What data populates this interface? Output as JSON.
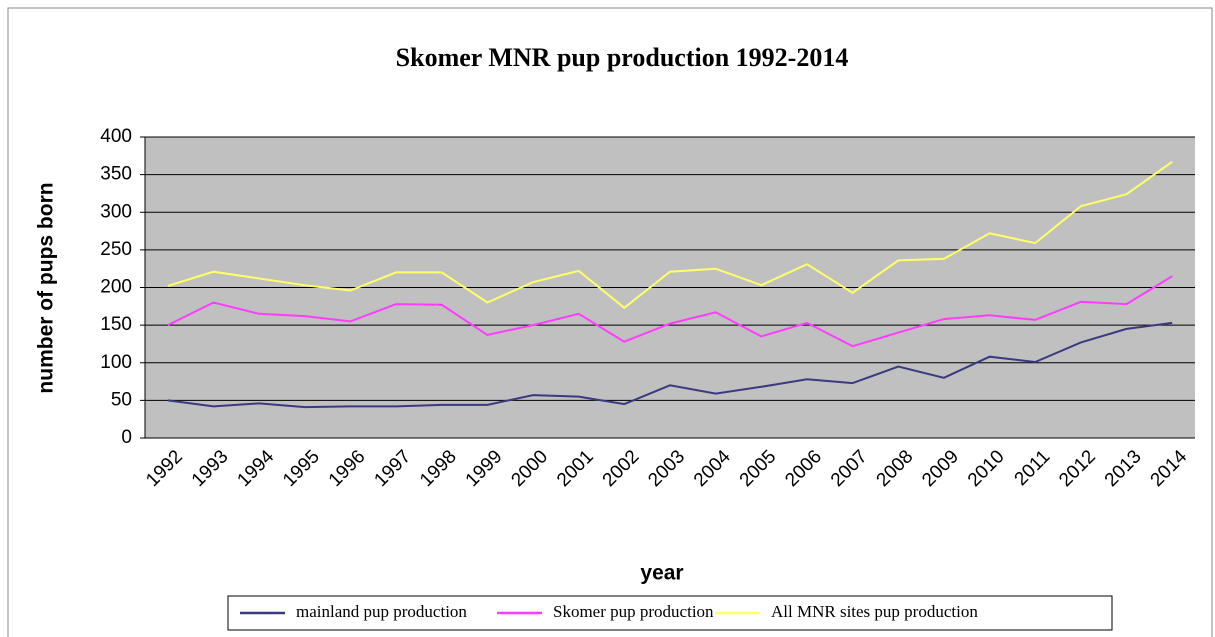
{
  "chart_data": {
    "type": "line",
    "title": "Skomer MNR pup production 1992-2014",
    "x_label": "year",
    "y_label": "number of pups born",
    "categories": [
      "1992",
      "1993",
      "1994",
      "1995",
      "1996",
      "1997",
      "1998",
      "1999",
      "2000",
      "2001",
      "2002",
      "2003",
      "2004",
      "2005",
      "2006",
      "2007",
      "2008",
      "2009",
      "2010",
      "2011",
      "2012",
      "2013",
      "2014"
    ],
    "series": [
      {
        "name": "mainland pup production",
        "color": "#3a3a80",
        "values": [
          50,
          42,
          46,
          41,
          42,
          42,
          44,
          44,
          57,
          55,
          45,
          70,
          59,
          68,
          78,
          73,
          95,
          80,
          108,
          101,
          127,
          145,
          153
        ]
      },
      {
        "name": "Skomer pup production",
        "color": "#ff3cff",
        "values": [
          150,
          180,
          165,
          162,
          155,
          178,
          177,
          137,
          150,
          165,
          128,
          152,
          167,
          135,
          153,
          122,
          140,
          158,
          163,
          157,
          181,
          178,
          215
        ]
      },
      {
        "name": "All MNR sites pup production",
        "color": "#ffff66",
        "values": [
          202,
          221,
          212,
          203,
          196,
          220,
          220,
          180,
          207,
          222,
          173,
          221,
          225,
          203,
          231,
          193,
          236,
          238,
          272,
          259,
          308,
          324,
          367
        ]
      }
    ],
    "ylim": [
      0,
      400
    ],
    "yticks": [
      0,
      50,
      100,
      150,
      200,
      250,
      300,
      350,
      400
    ],
    "grid": true,
    "legend": "bottom"
  }
}
